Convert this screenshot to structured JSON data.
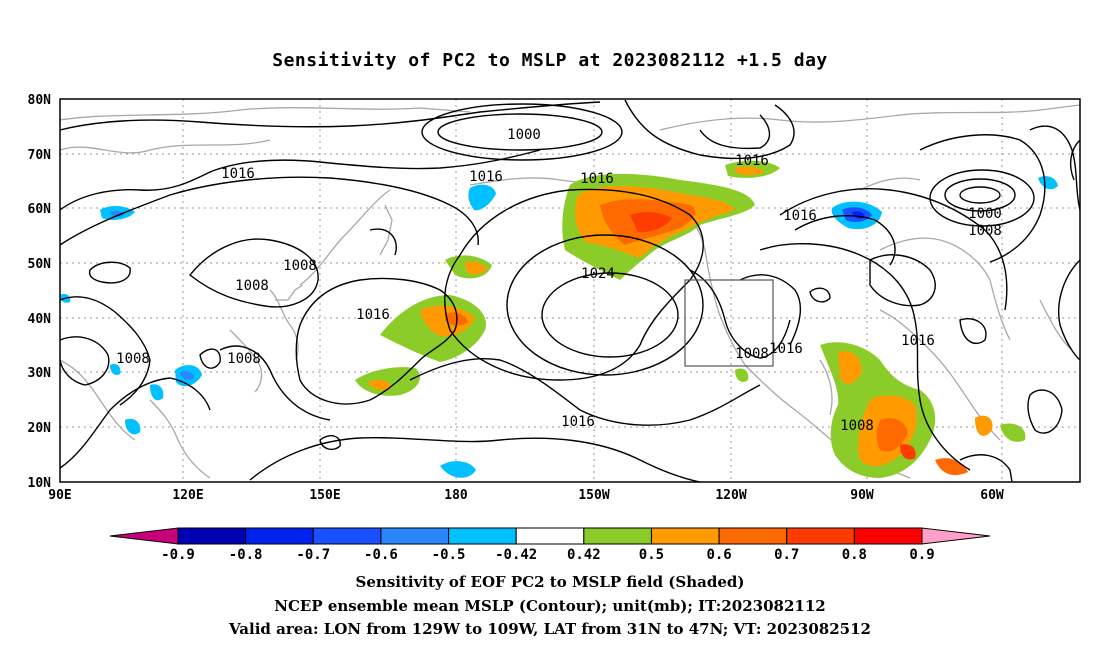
{
  "title": "Sensitivity of PC2 to MSLP at 2023082112 +1.5 day",
  "lat_labels": [
    "80N",
    "70N",
    "60N",
    "50N",
    "40N",
    "30N",
    "20N",
    "10N"
  ],
  "lon_labels": [
    "90E",
    "120E",
    "150E",
    "180",
    "150W",
    "120W",
    "90W",
    "60W"
  ],
  "contour_labels": [
    "1000",
    "1016",
    "1016",
    "1016",
    "1016",
    "1008",
    "1008",
    "1024",
    "1016",
    "1016",
    "1008",
    "1008",
    "1008",
    "1016",
    "1016",
    "1016",
    "1000",
    "1008",
    "1008",
    "1016"
  ],
  "colorbar": {
    "colors": [
      "#c8007a",
      "#0000b4",
      "#0022ee",
      "#1a50ff",
      "#2a86ff",
      "#00c0ff",
      "#ffffff",
      "#8ccc28",
      "#ff9a00",
      "#ff6a00",
      "#ff3c00",
      "#ff0000",
      "#ffa0c8"
    ],
    "labels": [
      "-0.9",
      "-0.8",
      "-0.7",
      "-0.6",
      "-0.5",
      "-0.42",
      "0.42",
      "0.5",
      "0.6",
      "0.7",
      "0.8",
      "0.9"
    ]
  },
  "captions": [
    "Sensitivity of EOF PC2 to MSLP field (Shaded)",
    "NCEP ensemble mean MSLP (Contour); unit(mb); IT:2023082112",
    "Valid area: LON from 129W to 109W, LAT from 31N to 47N; VT: 2023082512"
  ]
}
